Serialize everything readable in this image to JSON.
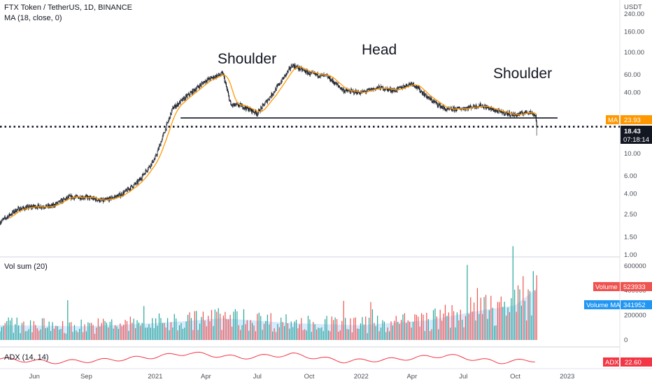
{
  "header": {
    "title": "FTX Token / TetherUS, 1D, BINANCE",
    "indicator": "MA (18, close, 0)"
  },
  "annotations": {
    "left_shoulder": "Shoulder",
    "head": "Head",
    "right_shoulder": "Shoulder"
  },
  "price_axis": {
    "unit": "USDT",
    "scale": "log",
    "ticks": [
      "240.00",
      "160.00",
      "100.00",
      "60.00",
      "40.00",
      "10.00",
      "6.00",
      "4.00",
      "2.50",
      "1.50",
      "1.00"
    ]
  },
  "badges": {
    "ma_label": "MA",
    "ma_value": "23.93",
    "last_price": "18.43",
    "countdown": "07:18:14",
    "volume_label": "Volume",
    "volume_value": "523933",
    "volume_ma_label": "Volume MA",
    "volume_ma_value": "341952",
    "adx_label": "ADX",
    "adx_value": "22.60"
  },
  "volume_pane": {
    "title": "Vol sum (20)",
    "ticks": [
      "600000",
      "400000",
      "200000",
      "0"
    ]
  },
  "adx_pane": {
    "title": "ADX (14, 14)"
  },
  "time_axis": [
    "Jun",
    "Sep",
    "2021",
    "Apr",
    "Jul",
    "Oct",
    "2022",
    "Apr",
    "Jul",
    "Oct",
    "2023"
  ],
  "colors": {
    "up": "#26a69a",
    "down": "#ef5350",
    "ma_line": "#ff9800",
    "vol_ma_fill": "#90bff9",
    "adx_line": "#f23645",
    "ma_badge": "#ff9800",
    "price_badge": "#131722",
    "volume_badge": "#ef5350",
    "volume_ma_badge": "#2196f3",
    "adx_badge": "#f23645"
  },
  "chart_data": {
    "type": "candlestick",
    "title": "FTX Token / TetherUS, 1D, BINANCE",
    "ylabel": "USDT",
    "yscale": "log",
    "ylim": [
      0.95,
      330
    ],
    "x_start": "2020-04-01",
    "x_end": "2023-01-15",
    "price_path": [
      [
        "2020-04-01",
        2.1
      ],
      [
        "2020-05-01",
        2.8
      ],
      [
        "2020-06-01",
        3.0
      ],
      [
        "2020-07-01",
        3.0
      ],
      [
        "2020-08-01",
        3.7
      ],
      [
        "2020-09-01",
        3.7
      ],
      [
        "2020-10-01",
        3.4
      ],
      [
        "2020-11-01",
        3.9
      ],
      [
        "2020-12-01",
        5.2
      ],
      [
        "2021-01-01",
        9.0
      ],
      [
        "2021-02-01",
        28.0
      ],
      [
        "2021-03-01",
        38.0
      ],
      [
        "2021-04-01",
        53.0
      ],
      [
        "2021-05-01",
        62.0
      ],
      [
        "2021-05-15",
        30.0
      ],
      [
        "2021-06-01",
        30.0
      ],
      [
        "2021-07-01",
        25.0
      ],
      [
        "2021-08-01",
        42.0
      ],
      [
        "2021-09-01",
        75.0
      ],
      [
        "2021-10-01",
        62.0
      ],
      [
        "2021-11-01",
        58.0
      ],
      [
        "2021-12-01",
        42.0
      ],
      [
        "2022-01-01",
        40.0
      ],
      [
        "2022-02-01",
        45.0
      ],
      [
        "2022-03-01",
        42.0
      ],
      [
        "2022-04-01",
        50.0
      ],
      [
        "2022-05-01",
        35.0
      ],
      [
        "2022-06-01",
        27.0
      ],
      [
        "2022-07-01",
        28.0
      ],
      [
        "2022-08-01",
        30.0
      ],
      [
        "2022-09-01",
        26.0
      ],
      [
        "2022-10-01",
        24.0
      ],
      [
        "2022-10-25",
        26.0
      ],
      [
        "2022-11-06",
        23.9
      ],
      [
        "2022-11-08",
        18.43
      ]
    ],
    "neckline": {
      "value": 22.5,
      "from": "2021-02-15",
      "to": "2022-12-15"
    },
    "last_price_line": 18.43,
    "series": [
      {
        "name": "MA",
        "value_last": 23.93
      },
      {
        "name": "Volume",
        "value_last": 523933
      },
      {
        "name": "Volume MA",
        "value_last": 341952
      },
      {
        "name": "ADX",
        "value_last": 22.6
      }
    ],
    "volume_ylim": [
      0,
      650000
    ],
    "volume_path": [
      [
        "2020-04-01",
        150000
      ],
      [
        "2020-09-01",
        140000
      ],
      [
        "2021-01-01",
        170000
      ],
      [
        "2021-05-01",
        220000
      ],
      [
        "2021-09-01",
        170000
      ],
      [
        "2022-01-01",
        150000
      ],
      [
        "2022-05-01",
        200000
      ],
      [
        "2022-08-01",
        300000
      ],
      [
        "2022-10-01",
        350000
      ],
      [
        "2022-11-08",
        523933
      ]
    ],
    "adx_path": [
      [
        "2020-04-01",
        25
      ],
      [
        "2020-07-01",
        18
      ],
      [
        "2020-10-01",
        22
      ],
      [
        "2021-01-01",
        30
      ],
      [
        "2021-03-01",
        38
      ],
      [
        "2021-06-01",
        28
      ],
      [
        "2021-09-01",
        35
      ],
      [
        "2021-12-01",
        20
      ],
      [
        "2022-03-01",
        24
      ],
      [
        "2022-06-01",
        33
      ],
      [
        "2022-09-01",
        18
      ],
      [
        "2022-11-08",
        22.6
      ]
    ],
    "adx_ylim": [
      5,
      50
    ]
  }
}
